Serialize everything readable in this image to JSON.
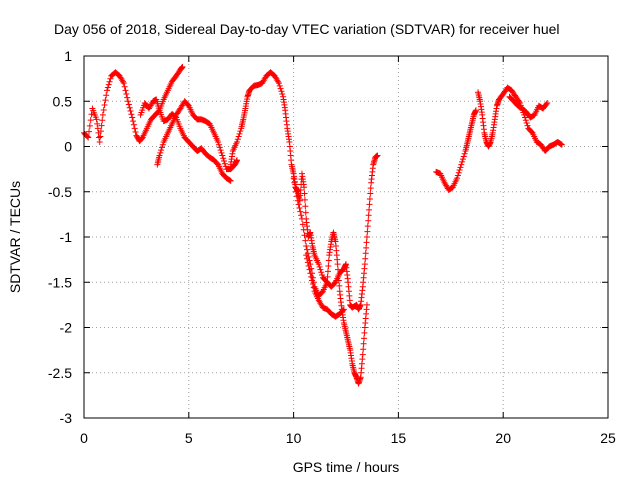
{
  "chart_data": {
    "type": "scatter",
    "title": "Day 056 of 2018, Sidereal Day-to-day VTEC variation (SDTVAR) for receiver huel",
    "xlabel": "GPS time / hours",
    "ylabel": "SDTVAR / TECUs",
    "xlim": [
      0,
      25
    ],
    "ylim": [
      -3,
      1
    ],
    "x_ticks": [
      0,
      5,
      10,
      15,
      20,
      25
    ],
    "y_ticks": [
      -3,
      -2.5,
      -2,
      -1.5,
      -1,
      -0.5,
      0,
      0.5,
      1
    ],
    "x_tick_labels": [
      "0",
      "5",
      "10",
      "15",
      "20",
      "25"
    ],
    "y_tick_labels": [
      "-3",
      "-2.5",
      "-2",
      "-1.5",
      "-1",
      "-0.5",
      "0",
      "0.5",
      "1"
    ],
    "grid": true,
    "marker": "+",
    "color": "#ff0000",
    "series": [
      {
        "points": [
          [
            0.0,
            0.15
          ],
          [
            0.2,
            0.1
          ],
          [
            0.4,
            0.42
          ],
          [
            0.6,
            0.3
          ],
          [
            0.75,
            0.05
          ],
          [
            0.9,
            0.35
          ],
          [
            1.1,
            0.62
          ],
          [
            1.3,
            0.78
          ],
          [
            1.5,
            0.82
          ],
          [
            1.7,
            0.78
          ],
          [
            1.9,
            0.7
          ],
          [
            2.1,
            0.5
          ],
          [
            2.3,
            0.32
          ],
          [
            2.5,
            0.12
          ],
          [
            2.65,
            0.06
          ],
          [
            2.8,
            0.1
          ],
          [
            3.0,
            0.2
          ],
          [
            3.2,
            0.3
          ],
          [
            3.4,
            0.35
          ],
          [
            3.6,
            0.4
          ],
          [
            3.8,
            0.52
          ],
          [
            4.0,
            0.62
          ],
          [
            4.2,
            0.72
          ],
          [
            4.4,
            0.78
          ],
          [
            4.6,
            0.85
          ],
          [
            4.7,
            0.88
          ]
        ]
      },
      {
        "points": [
          [
            2.7,
            0.35
          ],
          [
            2.9,
            0.48
          ],
          [
            3.1,
            0.42
          ],
          [
            3.3,
            0.5
          ],
          [
            3.45,
            0.52
          ],
          [
            3.6,
            0.4
          ],
          [
            3.8,
            0.28
          ],
          [
            4.0,
            0.3
          ],
          [
            4.2,
            0.36
          ],
          [
            4.4,
            0.32
          ],
          [
            4.6,
            0.2
          ],
          [
            4.8,
            0.1
          ],
          [
            5.0,
            0.05
          ],
          [
            5.2,
            0.0
          ],
          [
            5.4,
            -0.05
          ],
          [
            5.6,
            -0.02
          ],
          [
            5.8,
            -0.08
          ],
          [
            6.0,
            -0.12
          ],
          [
            6.2,
            -0.15
          ],
          [
            6.4,
            -0.2
          ],
          [
            6.6,
            -0.3
          ],
          [
            6.8,
            -0.35
          ],
          [
            7.0,
            -0.38
          ]
        ]
      },
      {
        "points": [
          [
            3.5,
            -0.2
          ],
          [
            3.6,
            -0.1
          ],
          [
            3.8,
            0.05
          ],
          [
            4.0,
            0.15
          ],
          [
            4.2,
            0.25
          ],
          [
            4.4,
            0.35
          ],
          [
            4.6,
            0.42
          ],
          [
            4.8,
            0.5
          ],
          [
            5.0,
            0.45
          ],
          [
            5.2,
            0.35
          ],
          [
            5.4,
            0.3
          ],
          [
            5.6,
            0.3
          ],
          [
            5.8,
            0.28
          ],
          [
            6.0,
            0.25
          ],
          [
            6.2,
            0.15
          ],
          [
            6.4,
            0.05
          ],
          [
            6.6,
            -0.1
          ],
          [
            6.8,
            -0.25
          ],
          [
            7.0,
            -0.25
          ],
          [
            7.2,
            -0.2
          ],
          [
            7.3,
            -0.15
          ]
        ]
      },
      {
        "points": [
          [
            7.0,
            -0.2
          ],
          [
            7.1,
            -0.05
          ],
          [
            7.3,
            0.05
          ],
          [
            7.5,
            0.2
          ],
          [
            7.6,
            0.3
          ],
          [
            7.7,
            0.42
          ],
          [
            7.8,
            0.55
          ],
          [
            7.9,
            0.62
          ],
          [
            8.1,
            0.67
          ],
          [
            8.3,
            0.68
          ],
          [
            8.5,
            0.7
          ],
          [
            8.7,
            0.78
          ],
          [
            8.9,
            0.82
          ],
          [
            9.1,
            0.78
          ],
          [
            9.3,
            0.7
          ],
          [
            9.5,
            0.55
          ],
          [
            9.6,
            0.4
          ],
          [
            9.7,
            0.2
          ],
          [
            9.8,
            0.05
          ],
          [
            9.9,
            -0.2
          ],
          [
            10.0,
            -0.3
          ],
          [
            10.1,
            -0.45
          ],
          [
            10.2,
            -0.5
          ],
          [
            10.3,
            -0.6
          ],
          [
            10.4,
            -0.3
          ],
          [
            10.5,
            -0.45
          ],
          [
            10.6,
            -0.8
          ],
          [
            10.7,
            -1.0
          ],
          [
            10.8,
            -0.95
          ],
          [
            10.9,
            -1.1
          ],
          [
            11.0,
            -1.2
          ],
          [
            11.2,
            -1.3
          ],
          [
            11.4,
            -1.45
          ],
          [
            11.6,
            -1.5
          ],
          [
            11.8,
            -1.55
          ],
          [
            12.0,
            -1.5
          ],
          [
            12.2,
            -1.4
          ],
          [
            12.4,
            -1.35
          ],
          [
            12.5,
            -1.3
          ],
          [
            12.6,
            -1.5
          ],
          [
            12.7,
            -1.75
          ],
          [
            12.8,
            -1.78
          ],
          [
            13.0,
            -1.75
          ],
          [
            13.1,
            -1.8
          ],
          [
            13.2,
            -1.75
          ],
          [
            13.3,
            -1.55
          ],
          [
            13.4,
            -1.3
          ],
          [
            13.5,
            -1.0
          ],
          [
            13.6,
            -0.7
          ],
          [
            13.7,
            -0.4
          ],
          [
            13.8,
            -0.2
          ],
          [
            13.9,
            -0.12
          ],
          [
            14.0,
            -0.1
          ]
        ]
      },
      {
        "points": [
          [
            10.0,
            -0.35
          ],
          [
            10.2,
            -0.6
          ],
          [
            10.4,
            -0.8
          ],
          [
            10.6,
            -1.1
          ],
          [
            10.8,
            -1.3
          ],
          [
            11.0,
            -1.55
          ],
          [
            11.2,
            -1.65
          ],
          [
            11.4,
            -1.6
          ],
          [
            11.6,
            -1.5
          ],
          [
            11.7,
            -1.2
          ],
          [
            11.8,
            -1.05
          ],
          [
            11.9,
            -0.95
          ],
          [
            12.0,
            -1.05
          ],
          [
            12.1,
            -1.3
          ],
          [
            12.2,
            -1.6
          ],
          [
            12.3,
            -1.8
          ],
          [
            12.4,
            -1.95
          ],
          [
            12.5,
            -2.05
          ],
          [
            12.6,
            -2.15
          ],
          [
            12.7,
            -2.25
          ],
          [
            12.8,
            -2.4
          ],
          [
            12.9,
            -2.5
          ],
          [
            13.0,
            -2.55
          ],
          [
            13.1,
            -2.62
          ],
          [
            13.2,
            -2.55
          ],
          [
            13.3,
            -2.3
          ],
          [
            13.4,
            -2.0
          ],
          [
            13.5,
            -1.75
          ]
        ]
      },
      {
        "points": [
          [
            10.6,
            -1.2
          ],
          [
            10.8,
            -1.4
          ],
          [
            11.0,
            -1.6
          ],
          [
            11.2,
            -1.7
          ],
          [
            11.4,
            -1.78
          ],
          [
            11.6,
            -1.8
          ],
          [
            11.8,
            -1.85
          ],
          [
            12.0,
            -1.88
          ],
          [
            12.2,
            -1.85
          ],
          [
            12.4,
            -1.8
          ]
        ]
      },
      {
        "points": [
          [
            16.8,
            -0.28
          ],
          [
            17.0,
            -0.3
          ],
          [
            17.2,
            -0.4
          ],
          [
            17.4,
            -0.48
          ],
          [
            17.6,
            -0.45
          ],
          [
            17.8,
            -0.35
          ],
          [
            18.0,
            -0.2
          ],
          [
            18.2,
            -0.05
          ],
          [
            18.3,
            0.05
          ],
          [
            18.4,
            0.15
          ],
          [
            18.5,
            0.25
          ],
          [
            18.6,
            0.35
          ],
          [
            18.7,
            0.4
          ]
        ]
      },
      {
        "points": [
          [
            18.8,
            0.6
          ],
          [
            18.9,
            0.5
          ],
          [
            19.0,
            0.35
          ],
          [
            19.1,
            0.15
          ],
          [
            19.2,
            0.05
          ],
          [
            19.3,
            0.0
          ],
          [
            19.4,
            0.05
          ],
          [
            19.5,
            0.15
          ],
          [
            19.6,
            0.3
          ],
          [
            19.7,
            0.45
          ],
          [
            19.8,
            0.52
          ],
          [
            20.0,
            0.58
          ],
          [
            20.2,
            0.65
          ],
          [
            20.4,
            0.62
          ],
          [
            20.6,
            0.55
          ],
          [
            20.8,
            0.48
          ],
          [
            21.0,
            0.35
          ],
          [
            21.2,
            0.2
          ],
          [
            21.4,
            0.15
          ],
          [
            21.6,
            0.05
          ],
          [
            21.8,
            0.02
          ],
          [
            22.0,
            -0.05
          ],
          [
            22.2,
            0.0
          ],
          [
            22.4,
            0.02
          ],
          [
            22.6,
            0.05
          ],
          [
            22.8,
            0.02
          ]
        ]
      },
      {
        "points": [
          [
            20.3,
            0.55
          ],
          [
            20.5,
            0.5
          ],
          [
            20.7,
            0.45
          ],
          [
            20.9,
            0.42
          ],
          [
            21.1,
            0.38
          ],
          [
            21.3,
            0.32
          ],
          [
            21.5,
            0.35
          ],
          [
            21.7,
            0.45
          ],
          [
            21.9,
            0.42
          ],
          [
            22.1,
            0.48
          ]
        ]
      }
    ]
  }
}
